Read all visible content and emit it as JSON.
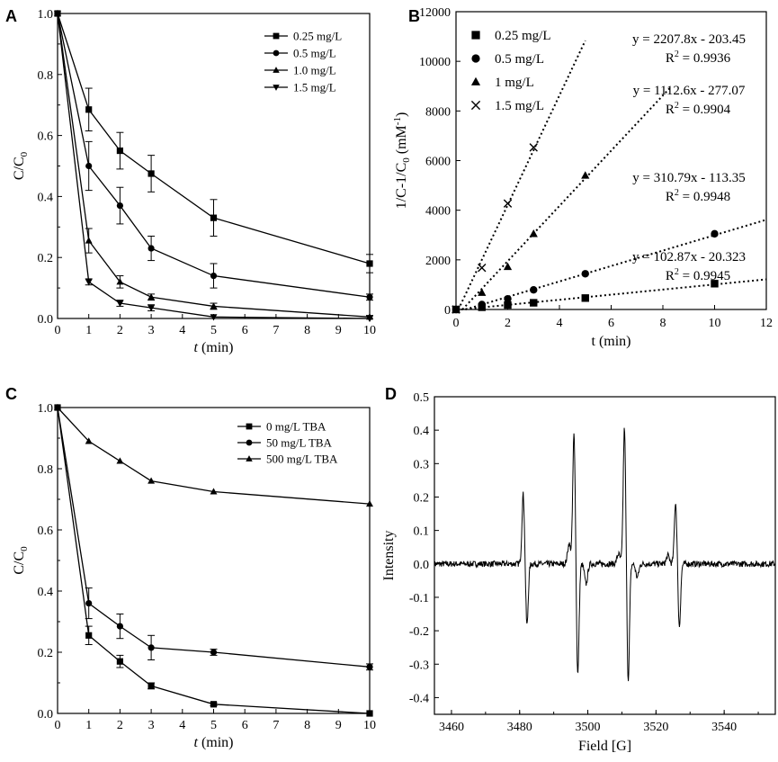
{
  "chart_data": [
    {
      "panel": "A",
      "type": "line",
      "xlabel_italic": "t",
      "xlabel_rest": " (min)",
      "ylabel": "C/C",
      "ylabel_sub": "0",
      "xlim": [
        0,
        10
      ],
      "ylim": [
        0,
        1.0
      ],
      "xticks": [
        0,
        1,
        2,
        3,
        4,
        5,
        6,
        7,
        8,
        9,
        10
      ],
      "yticks": [
        0.0,
        0.2,
        0.4,
        0.6,
        0.8,
        1.0
      ],
      "ytick_labels": [
        "0.0",
        "0.2",
        "0.4",
        "0.6",
        "0.8",
        "1.0"
      ],
      "series": [
        {
          "name": "0.25 mg/L",
          "marker": "square",
          "x": [
            0,
            1,
            2,
            3,
            5,
            10
          ],
          "y": [
            1.0,
            0.685,
            0.55,
            0.475,
            0.33,
            0.18
          ],
          "err": [
            0,
            0.07,
            0.06,
            0.06,
            0.06,
            0.03
          ]
        },
        {
          "name": "0.5 mg/L",
          "marker": "circle",
          "x": [
            0,
            1,
            2,
            3,
            5,
            10
          ],
          "y": [
            1.0,
            0.5,
            0.37,
            0.23,
            0.14,
            0.07
          ],
          "err": [
            0,
            0.08,
            0.06,
            0.04,
            0.04,
            0.01
          ]
        },
        {
          "name": "1.0 mg/L",
          "marker": "triangle",
          "x": [
            0,
            1,
            2,
            3,
            5,
            10
          ],
          "y": [
            1.0,
            0.255,
            0.12,
            0.07,
            0.04,
            0.005
          ],
          "err": [
            0,
            0.04,
            0.02,
            0.01,
            0.01,
            0.005
          ]
        },
        {
          "name": "1.5 mg/L",
          "marker": "triangle-down",
          "x": [
            0,
            1,
            2,
            3,
            5,
            10
          ],
          "y": [
            1.0,
            0.12,
            0.05,
            0.035,
            0.005,
            0.0
          ],
          "err": [
            0,
            0.01,
            0.01,
            0.01,
            0.0,
            0.0
          ]
        }
      ]
    },
    {
      "panel": "B",
      "type": "scatter",
      "xlabel": "t (min)",
      "ylabel_parts": [
        "1/C-1/C",
        "0",
        " (mM",
        "-1",
        ")"
      ],
      "xlim": [
        0,
        12
      ],
      "ylim": [
        0,
        12000
      ],
      "xticks": [
        0,
        2,
        4,
        6,
        8,
        10,
        12
      ],
      "yticks": [
        0,
        2000,
        4000,
        6000,
        8000,
        10000,
        12000
      ],
      "series": [
        {
          "name": "0.25 mg/L",
          "marker": "square",
          "x": [
            0,
            1,
            2,
            3,
            5,
            10
          ],
          "y": [
            0,
            90,
            180,
            270,
            460,
            1040
          ],
          "fit": {
            "slope": 102.87,
            "intercept": -20.323,
            "xmax": 12
          }
        },
        {
          "name": "0.5 mg/L",
          "marker": "circle",
          "x": [
            0,
            1,
            2,
            3,
            5,
            10
          ],
          "y": [
            0,
            200,
            430,
            790,
            1440,
            3050
          ],
          "fit": {
            "slope": 310.79,
            "intercept": -113.35,
            "xmax": 12
          }
        },
        {
          "name": "1 mg/L",
          "marker": "triangle",
          "x": [
            0,
            1,
            2,
            3,
            5
          ],
          "y": [
            0,
            680,
            1720,
            3050,
            5400
          ],
          "fit": {
            "slope": 1112.6,
            "intercept": -277.07,
            "xmax": 8.3
          }
        },
        {
          "name": "1.5 mg/L",
          "marker": "x",
          "x": [
            0,
            1,
            2,
            3
          ],
          "y": [
            0,
            1680,
            4270,
            6530
          ],
          "fit": {
            "slope": 2207.8,
            "intercept": -203.45,
            "xmax": 5
          }
        }
      ],
      "annotations": [
        {
          "eq": "y = 2207.8x - 203.45",
          "r2": "= 0.9936"
        },
        {
          "eq": "y = 1112.6x - 277.07",
          "r2": "= 0.9904"
        },
        {
          "eq": "y = 310.79x - 113.35",
          "r2": "= 0.9948"
        },
        {
          "eq": "y = 102.87x - 20.323",
          "r2": "= 0.9945"
        }
      ],
      "r2_prefix": "R",
      "r2_sup": "2"
    },
    {
      "panel": "C",
      "type": "line",
      "xlabel_italic": "t",
      "xlabel_rest": " (min)",
      "ylabel": "C/C",
      "ylabel_sub": "0",
      "xlim": [
        0,
        10
      ],
      "ylim": [
        0,
        1.0
      ],
      "xticks": [
        0,
        1,
        2,
        3,
        4,
        5,
        6,
        7,
        8,
        9,
        10
      ],
      "yticks": [
        0.0,
        0.2,
        0.4,
        0.6,
        0.8,
        1.0
      ],
      "ytick_labels": [
        "0.0",
        "0.2",
        "0.4",
        "0.6",
        "0.8",
        "1.0"
      ],
      "series": [
        {
          "name": "0 mg/L TBA",
          "marker": "square",
          "x": [
            0,
            1,
            2,
            3,
            5,
            10
          ],
          "y": [
            1.0,
            0.255,
            0.17,
            0.09,
            0.03,
            0.0
          ],
          "err": [
            0,
            0.03,
            0.02,
            0.01,
            0.005,
            0.0
          ]
        },
        {
          "name": "50 mg/L TBA",
          "marker": "circle",
          "x": [
            0,
            1,
            2,
            3,
            5,
            10
          ],
          "y": [
            1.0,
            0.36,
            0.285,
            0.215,
            0.2,
            0.152
          ],
          "err": [
            0,
            0.05,
            0.04,
            0.04,
            0.01,
            0.01
          ]
        },
        {
          "name": "500 mg/L TBA",
          "marker": "triangle",
          "x": [
            0,
            1,
            2,
            3,
            5,
            10
          ],
          "y": [
            1.0,
            0.89,
            0.825,
            0.76,
            0.725,
            0.685
          ],
          "err": [
            0,
            0,
            0,
            0,
            0,
            0
          ]
        }
      ]
    },
    {
      "panel": "D",
      "type": "line",
      "xlabel": "Field [G]",
      "ylabel": "Intensity",
      "xlim": [
        3455,
        3555
      ],
      "ylim": [
        -0.45,
        0.5
      ],
      "xticks": [
        3460,
        3480,
        3500,
        3520,
        3540
      ],
      "yticks": [
        -0.4,
        -0.3,
        -0.2,
        -0.1,
        0.0,
        0.1,
        0.2,
        0.3,
        0.4,
        0.5
      ],
      "ytick_labels": [
        "-0.4",
        "-0.3",
        "-0.2",
        "-0.1",
        "0.0",
        "0.1",
        "0.2",
        "0.3",
        "0.4",
        "0.5"
      ],
      "peaks": [
        {
          "center": 3481.6,
          "amp_max": 0.21,
          "amp_min": -0.185
        },
        {
          "center": 3496.5,
          "amp_max": 0.39,
          "amp_min": -0.335
        },
        {
          "center": 3511.3,
          "amp_max": 0.41,
          "amp_min": -0.35
        },
        {
          "center": 3526.3,
          "amp_max": 0.185,
          "amp_min": -0.19
        }
      ],
      "minor_features": [
        {
          "center": 3494.5,
          "amp": 0.06
        },
        {
          "center": 3499.5,
          "amp": -0.06
        },
        {
          "center": 3509.0,
          "amp": 0.03
        },
        {
          "center": 3514.5,
          "amp": -0.04
        },
        {
          "center": 3523.5,
          "amp": 0.025
        }
      ]
    }
  ],
  "panel_labels": [
    "A",
    "B",
    "C",
    "D"
  ]
}
